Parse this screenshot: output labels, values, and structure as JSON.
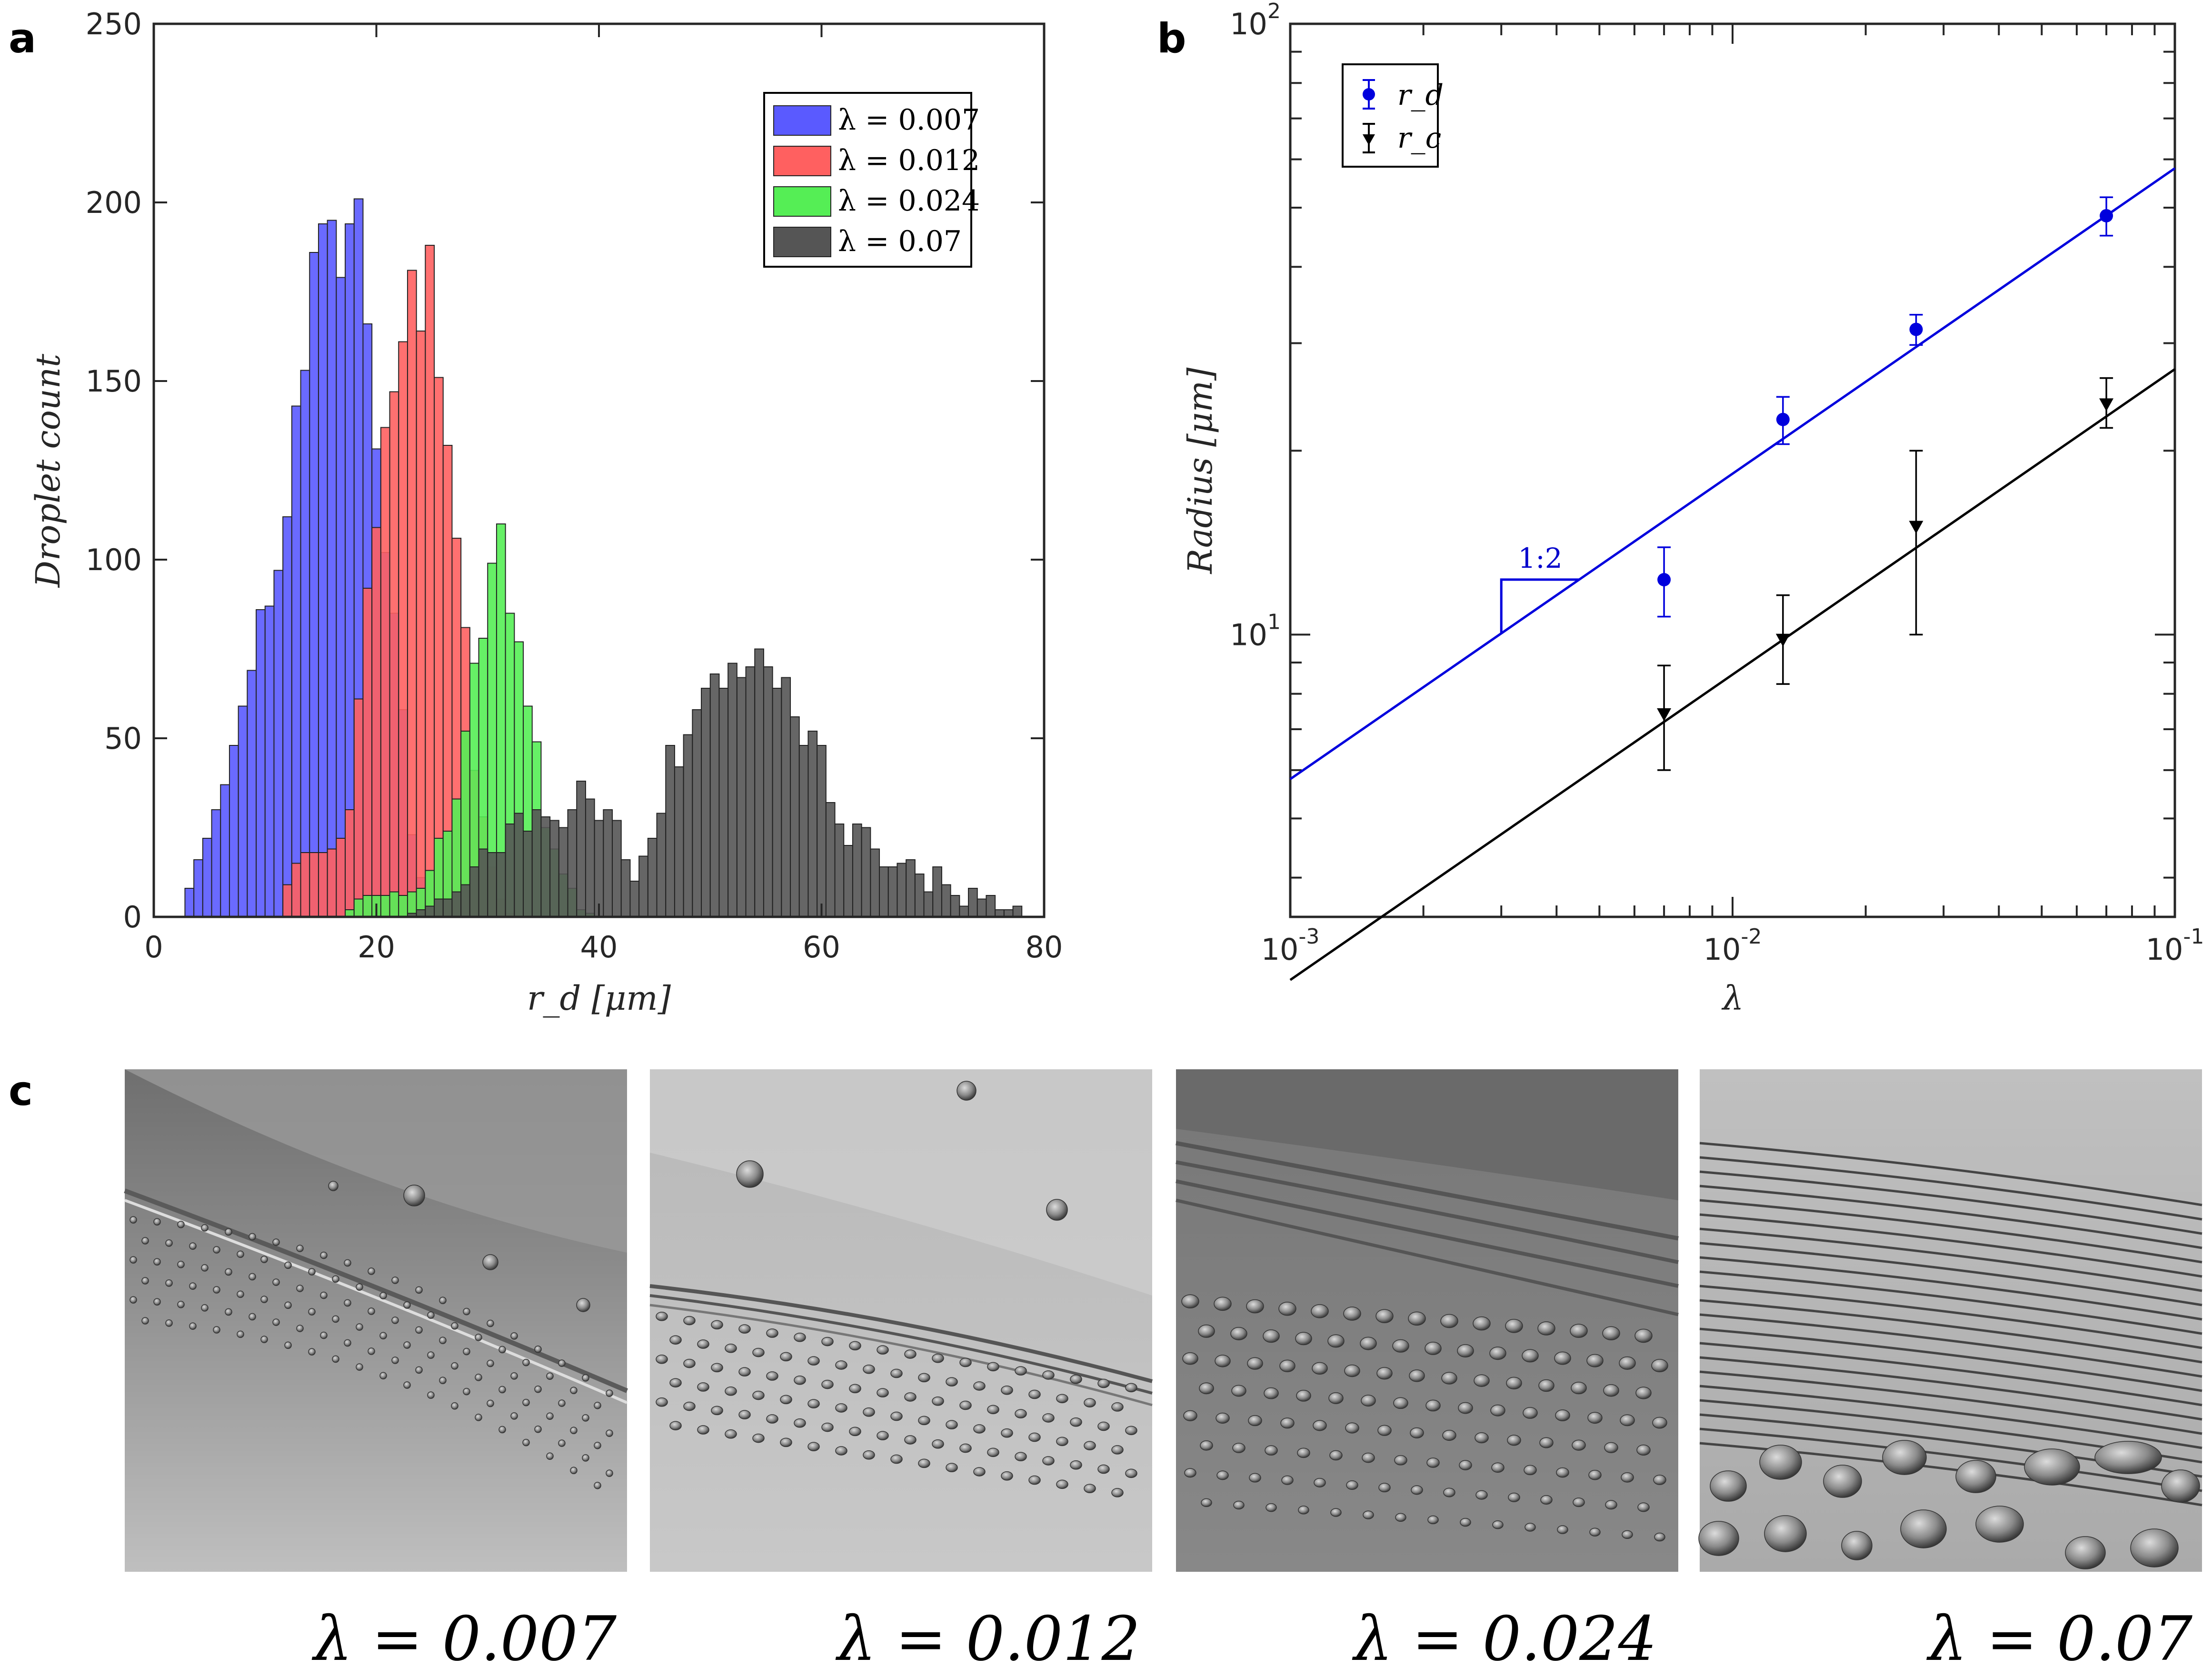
{
  "panels": {
    "a": "a",
    "b": "b",
    "c": "c"
  },
  "chart_data": [
    {
      "type": "bar",
      "panel": "a",
      "xlabel": "r_d [μm]",
      "ylabel": "Droplet count",
      "xlim": [
        0,
        80
      ],
      "ylim": [
        0,
        250
      ],
      "xticks": [
        "0",
        "20",
        "40",
        "60",
        "80"
      ],
      "yticks": [
        "0",
        "50",
        "100",
        "150",
        "200",
        "250"
      ],
      "legend": {
        "placement": "top-right"
      },
      "bin_start": 2.8,
      "bin_width": 0.8,
      "series": [
        {
          "name": "λ = 0.007",
          "color": "#5a5aff",
          "values": [
            8,
            16,
            22,
            30,
            37,
            48,
            59,
            69,
            86,
            87,
            97,
            112,
            143,
            153,
            186,
            194,
            195,
            179,
            194,
            201,
            166,
            131,
            102,
            85,
            58,
            23,
            11,
            3,
            1,
            0
          ]
        },
        {
          "name": "λ = 0.012",
          "color": "#ff6060",
          "start": 11,
          "values": [
            9,
            15,
            18,
            18,
            18,
            19,
            22,
            30,
            61,
            92,
            109,
            137,
            147,
            161,
            181,
            164,
            188,
            151,
            132,
            106,
            81,
            41,
            28,
            14,
            5,
            1
          ]
        },
        {
          "name": "λ = 0.024",
          "color": "#55ee55",
          "start": 18,
          "values": [
            2,
            5,
            6,
            6,
            6,
            7,
            6,
            7,
            8,
            13,
            22,
            24,
            33,
            52,
            71,
            78,
            99,
            110,
            85,
            77,
            59,
            49,
            25,
            19,
            12,
            8,
            2,
            1
          ]
        },
        {
          "name": "λ = 0.07",
          "color": "#555555",
          "start": 25,
          "values": [
            1,
            2,
            3,
            5,
            5,
            7,
            9,
            14,
            19,
            18,
            18,
            26,
            29,
            24,
            30,
            28,
            27,
            25,
            30,
            38,
            33,
            27,
            30,
            27,
            16,
            10,
            17,
            22,
            29,
            48,
            42,
            51,
            58,
            64,
            68,
            64,
            71,
            67,
            70,
            75,
            70,
            64,
            67,
            56,
            48,
            52,
            48,
            32,
            26,
            20,
            26,
            25,
            19,
            14,
            14,
            15,
            16,
            12,
            7,
            14,
            9,
            6,
            3,
            8,
            5,
            6,
            2,
            2,
            3
          ]
        }
      ]
    },
    {
      "type": "scatter",
      "panel": "b",
      "xlabel": "λ",
      "ylabel": "Radius [μm]",
      "xscale": "log",
      "yscale": "log",
      "xlim": [
        0.001,
        0.1
      ],
      "ylim": [
        3.45,
        100
      ],
      "xticks": [
        {
          "base": "10",
          "exp": "-3"
        },
        {
          "base": "10",
          "exp": "-2"
        },
        {
          "base": "10",
          "exp": "-1"
        }
      ],
      "yticks": [
        {
          "base": "10",
          "exp": "1"
        },
        {
          "base": "10",
          "exp": "2"
        }
      ],
      "legend": {
        "placement": "top-left"
      },
      "slope_label": "1:2",
      "series": [
        {
          "name": "r_d",
          "marker": "circle",
          "color": "#0000dd",
          "x": [
            0.007,
            0.013,
            0.026,
            0.07
          ],
          "y": [
            12.3,
            22.5,
            31.6,
            48.5
          ],
          "err": [
            1.6,
            2.0,
            1.8,
            3.5
          ],
          "fit": {
            "x": [
              0.001,
              0.1
            ],
            "y": [
              5.8,
              58.0
            ]
          }
        },
        {
          "name": "r_c",
          "marker": "triangle-down",
          "color": "#000000",
          "x": [
            0.007,
            0.013,
            0.026,
            0.07
          ],
          "y": [
            7.4,
            9.8,
            15.0,
            23.8
          ],
          "err_low": [
            1.4,
            1.5,
            5.0,
            2.0
          ],
          "err_high": [
            1.5,
            1.8,
            5.0,
            2.5
          ],
          "fit": {
            "x": [
              0.001,
              0.1
            ],
            "y": [
              2.72,
              27.2
            ]
          }
        }
      ]
    }
  ],
  "images": {
    "captions": [
      "λ = 0.007",
      "λ = 0.012",
      "λ = 0.024",
      "λ = 0.07"
    ]
  }
}
